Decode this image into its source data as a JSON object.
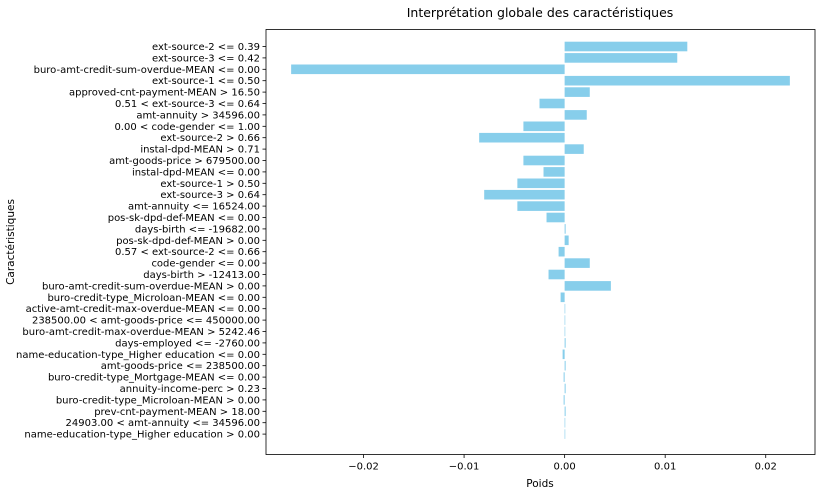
{
  "chart_data": {
    "type": "bar",
    "orientation": "horizontal",
    "title": "Interprétation globale des caractéristiques",
    "xlabel": "Poids",
    "ylabel": "Caractéristiques",
    "bar_color": "#87CEEB",
    "xlim": [
      -0.0297,
      0.0249
    ],
    "xticks": [
      -0.02,
      -0.01,
      0.0,
      0.01,
      0.02
    ],
    "xtick_labels": [
      "−0.02",
      "−0.01",
      "0.00",
      "0.01",
      "0.02"
    ],
    "grid": false,
    "categories": [
      "ext-source-2 <= 0.39",
      "ext-source-3 <= 0.42",
      "buro-amt-credit-sum-overdue-MEAN <= 0.00",
      "ext-source-1 <= 0.50",
      "approved-cnt-payment-MEAN > 16.50",
      "0.51 < ext-source-3 <= 0.64",
      "amt-annuity > 34596.00",
      "0.00 < code-gender <= 1.00",
      "ext-source-2 > 0.66",
      "instal-dpd-MEAN > 0.71",
      "amt-goods-price > 679500.00",
      "instal-dpd-MEAN <= 0.00",
      "ext-source-1 > 0.50",
      "ext-source-3 > 0.64",
      "amt-annuity <= 16524.00",
      "pos-sk-dpd-def-MEAN <= 0.00",
      "days-birth <= -19682.00",
      "pos-sk-dpd-def-MEAN > 0.00",
      "0.57 < ext-source-2 <= 0.66",
      "code-gender <= 0.00",
      "days-birth > -12413.00",
      "buro-amt-credit-sum-overdue-MEAN > 0.00",
      "buro-credit-type_Microloan-MEAN <= 0.00",
      "active-amt-credit-max-overdue-MEAN <= 0.00",
      "238500.00 < amt-goods-price <= 450000.00",
      "buro-amt-credit-max-overdue-MEAN > 5242.46",
      "days-employed <= -2760.00",
      "name-education-type_Higher education <= 0.00",
      "amt-goods-price <= 238500.00",
      "buro-credit-type_Mortgage-MEAN <= 0.00",
      "annuity-income-perc > 0.23",
      "buro-credit-type_Microloan-MEAN > 0.00",
      "prev-cnt-payment-MEAN > 18.00",
      "24903.00 < amt-annuity <= 34596.00",
      "name-education-type_Higher education > 0.00"
    ],
    "values": [
      0.0122,
      0.0112,
      -0.0272,
      0.0224,
      0.0025,
      -0.0025,
      0.0022,
      -0.0041,
      -0.0085,
      0.0019,
      -0.0041,
      -0.0021,
      -0.0047,
      -0.008,
      -0.0047,
      -0.0018,
      0.0001,
      0.0004,
      -0.0006,
      0.0025,
      -0.0016,
      0.0046,
      -0.0004,
      0.0,
      0.0,
      0.0,
      0.0001,
      -0.0002,
      0.0001,
      -0.0001,
      0.0001,
      -0.0001,
      0.0001,
      0.0,
      0.0
    ]
  }
}
